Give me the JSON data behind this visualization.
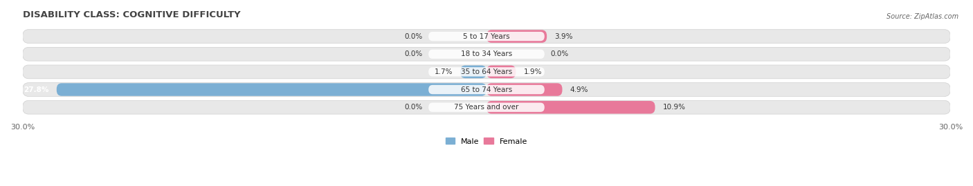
{
  "title": "DISABILITY CLASS: COGNITIVE DIFFICULTY",
  "source": "Source: ZipAtlas.com",
  "categories": [
    "5 to 17 Years",
    "18 to 34 Years",
    "35 to 64 Years",
    "65 to 74 Years",
    "75 Years and over"
  ],
  "male_values": [
    0.0,
    0.0,
    1.7,
    27.8,
    0.0
  ],
  "female_values": [
    3.9,
    0.0,
    1.9,
    4.9,
    10.9
  ],
  "male_color": "#7BAFD4",
  "female_color": "#E8799A",
  "bar_bg_color": "#E8E8E8",
  "bar_bg_border_color": "#D0D0D0",
  "label_bg_color": "#FFFFFF",
  "background_color": "#FFFFFF",
  "xlim": 30.0,
  "title_fontsize": 9.5,
  "label_fontsize": 7.5,
  "tick_fontsize": 8,
  "bar_height": 0.72,
  "legend_labels": [
    "Male",
    "Female"
  ]
}
